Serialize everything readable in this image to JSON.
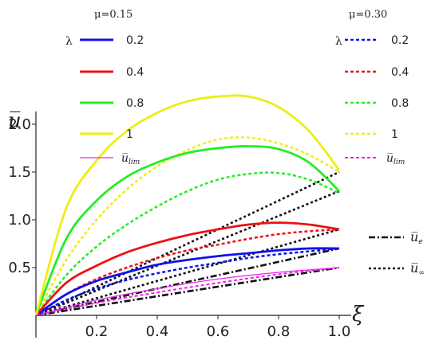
{
  "chart_data": {
    "type": "line",
    "xlabel": "ξ",
    "ylabel": "u̅",
    "xlim": [
      0,
      1
    ],
    "ylim": [
      0,
      2.4
    ],
    "xticks": [
      "0.2",
      "0.4",
      "0.6",
      "0.8",
      "1.0"
    ],
    "yticks": [
      "0.5",
      "1.0",
      "1.5",
      "2.0"
    ],
    "groups": [
      {
        "label": "μ=0.15",
        "style": "solid"
      },
      {
        "label": "μ=0.30",
        "style": "dashed"
      }
    ],
    "lambda_symbol": "λ",
    "lambda_values": [
      "0.2",
      "0.4",
      "0.8",
      "1"
    ],
    "lim_label": "u̅",
    "lim_sub": "lim",
    "colors": {
      "0.2": "#1010ee",
      "0.4": "#ee1010",
      "0.8": "#22ee22",
      "1": "#eeee11",
      "lim": "#ee22ee",
      "ref": "#111111"
    },
    "series": [
      {
        "mu": 0.15,
        "lambda": 0.2,
        "x": [
          0,
          0.1,
          0.2,
          0.3,
          0.4,
          0.5,
          0.6,
          0.7,
          0.8,
          0.9,
          1.0
        ],
        "y": [
          0,
          0.22,
          0.36,
          0.45,
          0.53,
          0.58,
          0.62,
          0.65,
          0.68,
          0.7,
          0.7
        ]
      },
      {
        "mu": 0.15,
        "lambda": 0.4,
        "x": [
          0,
          0.1,
          0.2,
          0.3,
          0.4,
          0.5,
          0.6,
          0.7,
          0.8,
          0.9,
          1.0
        ],
        "y": [
          0,
          0.34,
          0.52,
          0.66,
          0.76,
          0.84,
          0.9,
          0.95,
          0.97,
          0.95,
          0.9
        ]
      },
      {
        "mu": 0.15,
        "lambda": 0.8,
        "x": [
          0,
          0.1,
          0.2,
          0.3,
          0.4,
          0.5,
          0.6,
          0.7,
          0.8,
          0.9,
          1.0
        ],
        "y": [
          0,
          0.8,
          1.2,
          1.45,
          1.6,
          1.7,
          1.75,
          1.77,
          1.74,
          1.6,
          1.3
        ]
      },
      {
        "mu": 0.15,
        "lambda": 1,
        "x": [
          0,
          0.1,
          0.2,
          0.3,
          0.4,
          0.5,
          0.6,
          0.7,
          0.8,
          0.9,
          1.0
        ],
        "y": [
          0,
          1.12,
          1.62,
          1.93,
          2.12,
          2.24,
          2.29,
          2.29,
          2.18,
          1.93,
          1.52
        ]
      },
      {
        "mu": 0.15,
        "lambda": "lim",
        "x": [
          0,
          0.2,
          0.4,
          0.6,
          0.8,
          1.0
        ],
        "y": [
          0,
          0.16,
          0.28,
          0.38,
          0.45,
          0.5
        ]
      },
      {
        "mu": 0.3,
        "lambda": 0.2,
        "x": [
          0,
          0.1,
          0.2,
          0.3,
          0.4,
          0.5,
          0.6,
          0.7,
          0.8,
          0.9,
          1.0
        ],
        "y": [
          0,
          0.16,
          0.28,
          0.37,
          0.44,
          0.5,
          0.55,
          0.6,
          0.64,
          0.67,
          0.7
        ]
      },
      {
        "mu": 0.3,
        "lambda": 0.4,
        "x": [
          0,
          0.1,
          0.2,
          0.3,
          0.4,
          0.5,
          0.6,
          0.7,
          0.8,
          0.9,
          1.0
        ],
        "y": [
          0,
          0.22,
          0.38,
          0.5,
          0.6,
          0.68,
          0.74,
          0.8,
          0.85,
          0.88,
          0.9
        ]
      },
      {
        "mu": 0.3,
        "lambda": 0.8,
        "x": [
          0,
          0.1,
          0.2,
          0.3,
          0.4,
          0.5,
          0.6,
          0.7,
          0.8,
          0.9,
          1.0
        ],
        "y": [
          0,
          0.42,
          0.72,
          0.95,
          1.14,
          1.3,
          1.42,
          1.48,
          1.49,
          1.42,
          1.28
        ]
      },
      {
        "mu": 0.3,
        "lambda": 1,
        "x": [
          0,
          0.1,
          0.2,
          0.3,
          0.4,
          0.5,
          0.6,
          0.7,
          0.8,
          0.9,
          1.0
        ],
        "y": [
          0,
          0.58,
          1.0,
          1.32,
          1.56,
          1.73,
          1.84,
          1.86,
          1.8,
          1.68,
          1.5
        ]
      },
      {
        "mu": 0.3,
        "lambda": "lim",
        "x": [
          0,
          0.2,
          0.4,
          0.6,
          0.8,
          1.0
        ],
        "y": [
          0,
          0.13,
          0.24,
          0.34,
          0.43,
          0.5
        ]
      },
      {
        "ref": "e",
        "x": [
          0,
          1
        ],
        "y": [
          0,
          0.5
        ]
      },
      {
        "ref": "e",
        "x": [
          0,
          1
        ],
        "y": [
          0,
          0.7
        ]
      },
      {
        "ref": "inf",
        "x": [
          0,
          1
        ],
        "y": [
          0,
          0.9
        ]
      },
      {
        "ref": "inf",
        "x": [
          0,
          1
        ],
        "y": [
          0,
          1.3
        ]
      },
      {
        "ref": "inf",
        "x": [
          0,
          1
        ],
        "y": [
          0,
          1.5
        ]
      }
    ],
    "ref_legend": [
      {
        "key": "e",
        "label": "u̅",
        "sub": "e",
        "style": "dashdot"
      },
      {
        "key": "inf",
        "label": "u̅",
        "sub": "∞",
        "style": "dotted"
      }
    ]
  }
}
